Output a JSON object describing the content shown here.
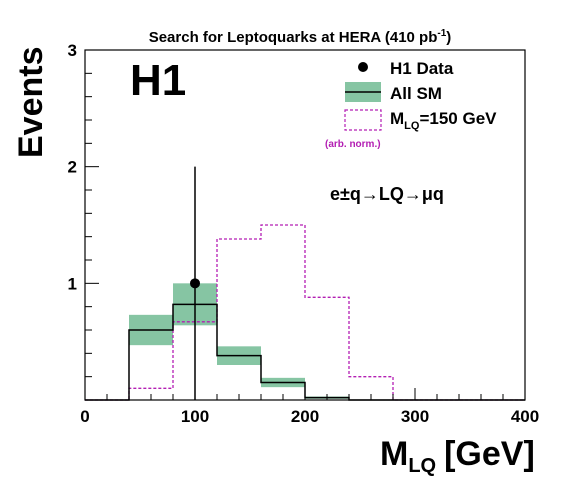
{
  "chart_data": {
    "type": "histogram",
    "title": "Search for Leptoquarks at HERA (410 pb",
    "title_sup": "-1",
    "title_end": ")",
    "experiment_label": "H1",
    "process_label": "e±q→LQ→μq",
    "xlabel": "M",
    "xlabel_sub": "LQ",
    "xlabel_unit": "[GeV]",
    "ylabel": "Events",
    "xlim": [
      0,
      400
    ],
    "ylim": [
      0,
      3
    ],
    "x_ticks": [
      "0",
      "100",
      "200",
      "300",
      "400"
    ],
    "y_ticks": [
      "1",
      "2",
      "3"
    ],
    "bin_edges": [
      0,
      40,
      80,
      120,
      160,
      200,
      240,
      280,
      320,
      360,
      400
    ],
    "series": [
      {
        "name": "H1 Data",
        "kind": "points",
        "points": [
          {
            "x": 100,
            "y": 1,
            "err_low": 1,
            "err_high": 1
          }
        ]
      },
      {
        "name": "All SM",
        "kind": "step_with_band",
        "values": [
          0,
          0.6,
          0.82,
          0.38,
          0.15,
          0.02,
          0,
          0,
          0,
          0
        ],
        "band_low": [
          0,
          0.47,
          0.64,
          0.3,
          0.11,
          0.01,
          0,
          0,
          0,
          0
        ],
        "band_high": [
          0,
          0.73,
          1.0,
          0.46,
          0.19,
          0.03,
          0,
          0,
          0,
          0
        ]
      },
      {
        "name": "M",
        "name_sub": "LQ",
        "name_rest": "=150 GeV",
        "note": "(arb. norm.)",
        "kind": "step_dashed",
        "values": [
          0,
          0.1,
          0.67,
          1.38,
          1.5,
          0.88,
          0.2,
          0,
          0,
          0
        ]
      }
    ],
    "legend_position": "top-right",
    "colors": {
      "band": "#86c5a3",
      "signal": "#b31eb3",
      "data": "#000000",
      "sm_line": "#000000"
    }
  }
}
